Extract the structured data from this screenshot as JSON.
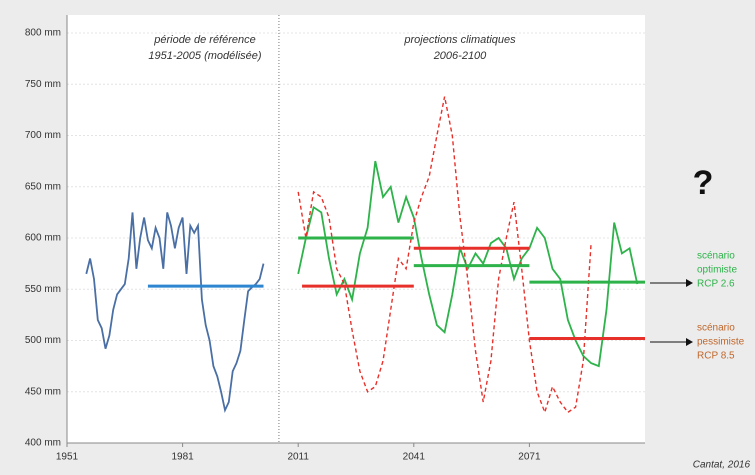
{
  "chart_data": {
    "type": "line",
    "xlim": [
      1951,
      2101
    ],
    "ylim": [
      400,
      800
    ],
    "xticks": [
      1951,
      1981,
      2011,
      2041,
      2071
    ],
    "yticks": [
      {
        "value": 400,
        "label": "400 mm"
      },
      {
        "value": 450,
        "label": "450 mm"
      },
      {
        "value": 500,
        "label": "500 mm"
      },
      {
        "value": 550,
        "label": "550 mm"
      },
      {
        "value": 600,
        "label": "600 mm"
      },
      {
        "value": 650,
        "label": "650 mm"
      },
      {
        "value": 700,
        "label": "700 mm"
      },
      {
        "value": 750,
        "label": "750 mm"
      },
      {
        "value": 800,
        "label": "800 mm"
      }
    ],
    "grid": true,
    "divider_x": 2006,
    "series": [
      {
        "color": "#4a6fa5",
        "dash": false,
        "x": [
          1956,
          1957,
          1958,
          1959,
          1960,
          1961,
          1962,
          1963,
          1964,
          1965,
          1966,
          1967,
          1968,
          1969,
          1970,
          1971,
          1972,
          1973,
          1974,
          1975,
          1976,
          1977,
          1978,
          1979,
          1980,
          1981,
          1982,
          1983,
          1984,
          1985,
          1986,
          1987,
          1988,
          1989,
          1990,
          1991,
          1992,
          1993,
          1994,
          1995,
          1996,
          1997,
          1998,
          1999,
          2000,
          2001,
          2002
        ],
        "values": [
          565,
          580,
          560,
          520,
          512,
          492,
          505,
          530,
          545,
          550,
          555,
          580,
          625,
          570,
          600,
          620,
          598,
          590,
          610,
          600,
          570,
          625,
          612,
          590,
          610,
          620,
          565,
          612,
          605,
          612,
          540,
          515,
          500,
          475,
          465,
          450,
          432,
          440,
          470,
          478,
          490,
          520,
          548,
          552,
          555,
          560,
          575
        ]
      },
      {
        "color": "#2db34a",
        "dash": false,
        "x": [
          2011,
          2013,
          2015,
          2017,
          2019,
          2021,
          2023,
          2025,
          2027,
          2029,
          2031,
          2033,
          2035,
          2037,
          2039,
          2041,
          2043,
          2045,
          2047,
          2049,
          2051,
          2053,
          2055,
          2057,
          2059,
          2061,
          2063,
          2065,
          2067,
          2069,
          2071,
          2073,
          2075,
          2077,
          2079,
          2081,
          2083,
          2085,
          2087,
          2089,
          2091,
          2093,
          2095,
          2097,
          2099
        ],
        "values": [
          565,
          600,
          630,
          625,
          580,
          545,
          560,
          540,
          585,
          610,
          675,
          640,
          650,
          615,
          640,
          620,
          580,
          545,
          515,
          508,
          545,
          590,
          570,
          585,
          575,
          595,
          600,
          590,
          560,
          580,
          590,
          610,
          600,
          570,
          560,
          520,
          500,
          485,
          478,
          475,
          530,
          615,
          585,
          590,
          555
        ]
      },
      {
        "color": "#e8302a",
        "dash": true,
        "x": [
          2011,
          2013,
          2015,
          2017,
          2019,
          2021,
          2023,
          2025,
          2027,
          2029,
          2031,
          2033,
          2035,
          2037,
          2039,
          2041,
          2043,
          2045,
          2047,
          2049,
          2051,
          2053,
          2055,
          2057,
          2059,
          2061,
          2063,
          2065,
          2067,
          2069,
          2071,
          2073,
          2075,
          2077,
          2079,
          2081,
          2083,
          2085,
          2087
        ],
        "values": [
          645,
          600,
          645,
          640,
          620,
          570,
          555,
          510,
          470,
          450,
          455,
          480,
          530,
          580,
          570,
          615,
          640,
          660,
          700,
          738,
          700,
          620,
          560,
          490,
          440,
          480,
          560,
          600,
          635,
          570,
          500,
          450,
          430,
          455,
          440,
          430,
          435,
          480,
          595
        ]
      }
    ],
    "mean_lines": [
      {
        "x": [
          1972,
          2002
        ],
        "value": 553,
        "color": "#2e86d1"
      },
      {
        "x": [
          2011,
          2041
        ],
        "value": 600,
        "color": "#2db34a"
      },
      {
        "x": [
          2012,
          2041
        ],
        "value": 553,
        "color": "#e8302a"
      },
      {
        "x": [
          2041,
          2071
        ],
        "value": 590,
        "color": "#e8302a"
      },
      {
        "x": [
          2041,
          2071
        ],
        "value": 573,
        "color": "#2db34a"
      },
      {
        "x": [
          2071,
          2101
        ],
        "value": 557,
        "color": "#2db34a"
      },
      {
        "x": [
          2071,
          2101
        ],
        "value": 502,
        "color": "#e8302a"
      }
    ],
    "annotations": {
      "reference": [
        "période de référence",
        "1951-2005 (modélisée)"
      ],
      "projections": [
        "projections climatiques",
        "2006-2100"
      ],
      "question": "?",
      "optimistic": [
        "scénario",
        "optimiste",
        "RCP 2.6"
      ],
      "pessimistic": [
        "scénario",
        "pessimiste",
        "RCP 8.5"
      ],
      "source": "Cantat, 2016"
    }
  }
}
